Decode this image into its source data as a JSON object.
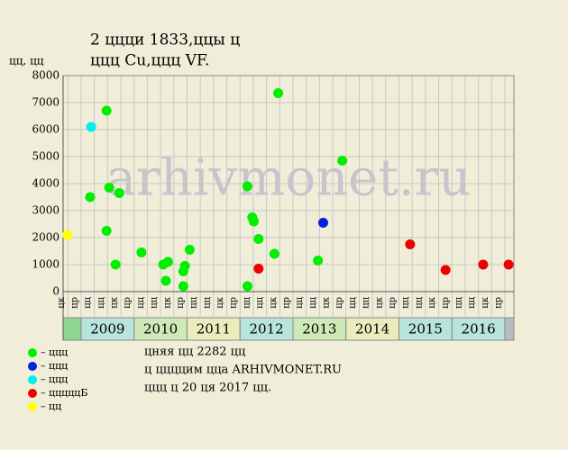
{
  "chart_data": {
    "type": "scatter",
    "title": "2 ццци 1833,ццы ц",
    "subtitle": "ццц Cu,ццц VF.",
    "y_label": "цц, цц",
    "watermark": "arhivmonet.ru",
    "xlim": [
      2008.66,
      2017.17
    ],
    "ylim": [
      0,
      8000
    ],
    "yticks": [
      0,
      1000,
      2000,
      3000,
      4000,
      5000,
      6000,
      7000,
      8000
    ],
    "xticks": [
      {
        "value": 2008.75,
        "label": "цк"
      },
      {
        "value": 2009.0,
        "label": "цр"
      },
      {
        "value": 2009.25,
        "label": "цц"
      },
      {
        "value": 2009.5,
        "label": "цц"
      },
      {
        "value": 2009.75,
        "label": "цк"
      },
      {
        "value": 2010.0,
        "label": "цр"
      },
      {
        "value": 2010.25,
        "label": "цц"
      },
      {
        "value": 2010.5,
        "label": "цц"
      },
      {
        "value": 2010.75,
        "label": "цк"
      },
      {
        "value": 2011.0,
        "label": "цр"
      },
      {
        "value": 2011.25,
        "label": "цц"
      },
      {
        "value": 2011.5,
        "label": "цц"
      },
      {
        "value": 2011.75,
        "label": "цк"
      },
      {
        "value": 2012.0,
        "label": "цр"
      },
      {
        "value": 2012.25,
        "label": "цц"
      },
      {
        "value": 2012.5,
        "label": "цц"
      },
      {
        "value": 2012.75,
        "label": "цк"
      },
      {
        "value": 2013.0,
        "label": "цр"
      },
      {
        "value": 2013.25,
        "label": "цц"
      },
      {
        "value": 2013.5,
        "label": "цц"
      },
      {
        "value": 2013.75,
        "label": "цк"
      },
      {
        "value": 2014.0,
        "label": "цр"
      },
      {
        "value": 2014.25,
        "label": "цц"
      },
      {
        "value": 2014.5,
        "label": "цц"
      },
      {
        "value": 2014.75,
        "label": "цк"
      },
      {
        "value": 2015.0,
        "label": "цр"
      },
      {
        "value": 2015.25,
        "label": "цц"
      },
      {
        "value": 2015.5,
        "label": "цц"
      },
      {
        "value": 2015.75,
        "label": "цк"
      },
      {
        "value": 2016.0,
        "label": "цр"
      },
      {
        "value": 2016.25,
        "label": "цц"
      },
      {
        "value": 2016.5,
        "label": "цц"
      },
      {
        "value": 2016.75,
        "label": "цк"
      },
      {
        "value": 2017.0,
        "label": "цр"
      }
    ],
    "year_bands": [
      2009,
      2010,
      2011,
      2012,
      2013,
      2014,
      2015,
      2016
    ],
    "year_band_colors": [
      "#b8e4dc",
      "#cfe8b8",
      "#ebebbc",
      "#b8e4dc",
      "#cfe8b8",
      "#ebebbc",
      "#b8e4dc",
      "#b8e4dc"
    ],
    "grid": true,
    "series": [
      {
        "name": "– ццц",
        "color": "#00ee00",
        "x": [
          2009.17,
          2009.48,
          2009.48,
          2009.53,
          2009.65,
          2009.72,
          2010.14,
          2010.55,
          2010.64,
          2010.6,
          2010.93,
          2010.96,
          2011.05,
          2010.93,
          2012.14,
          2012.23,
          2012.26,
          2012.35,
          2012.65,
          2012.72,
          2012.14,
          2013.47,
          2013.93
        ],
        "values": [
          3500,
          6700,
          2250,
          3850,
          1000,
          3650,
          1450,
          1000,
          1100,
          400,
          750,
          950,
          1550,
          200,
          3900,
          2750,
          2600,
          1950,
          1400,
          7350,
          200,
          1150,
          4850
        ]
      },
      {
        "name": "– ццц",
        "color": "#0022dd",
        "x": [
          2013.57
        ],
        "values": [
          2550
        ]
      },
      {
        "name": "– ццц",
        "color": "#00eeee",
        "x": [
          2009.19
        ],
        "values": [
          6100
        ]
      },
      {
        "name": "– цццццБ",
        "color": "#ee0000",
        "x": [
          2012.35,
          2015.21,
          2015.88,
          2016.59,
          2017.07
        ],
        "values": [
          850,
          1750,
          800,
          1000,
          1000
        ]
      },
      {
        "name": "– цц",
        "color": "#ffff00",
        "x": [
          2008.74
        ],
        "values": [
          2100
        ]
      }
    ],
    "notes": [
      "цняя цц 2282 цц",
      "ц ццццим ццa ARHIVMONET.RU",
      "ццц ц 20 ця 2017 цц."
    ]
  }
}
